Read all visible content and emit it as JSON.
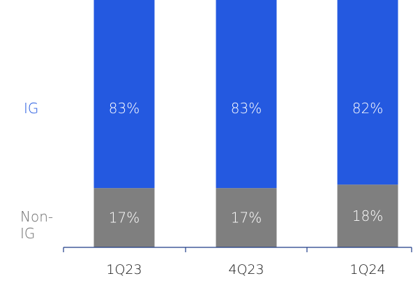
{
  "chart_data": {
    "type": "bar",
    "stacked": true,
    "categories": [
      "1Q23",
      "4Q23",
      "1Q24"
    ],
    "series": [
      {
        "name": "IG",
        "values": [
          83,
          83,
          82
        ],
        "color": "#2459e0",
        "labels": [
          "83%",
          "83%",
          "82%"
        ]
      },
      {
        "name": "Non-IG",
        "values": [
          17,
          17,
          18
        ],
        "color": "#7f7f7f",
        "labels": [
          "17%",
          "17%",
          "18%"
        ]
      }
    ],
    "ylim": [
      0,
      100
    ],
    "y_unit": "%",
    "axis_color": "#1f3c88",
    "series_label_colors": {
      "IG": "#2459e0",
      "Non-IG": "#6b6b6b"
    }
  },
  "labels": {
    "ig": "IG",
    "non_ig_line1": "Non-",
    "non_ig_line2": "IG"
  }
}
